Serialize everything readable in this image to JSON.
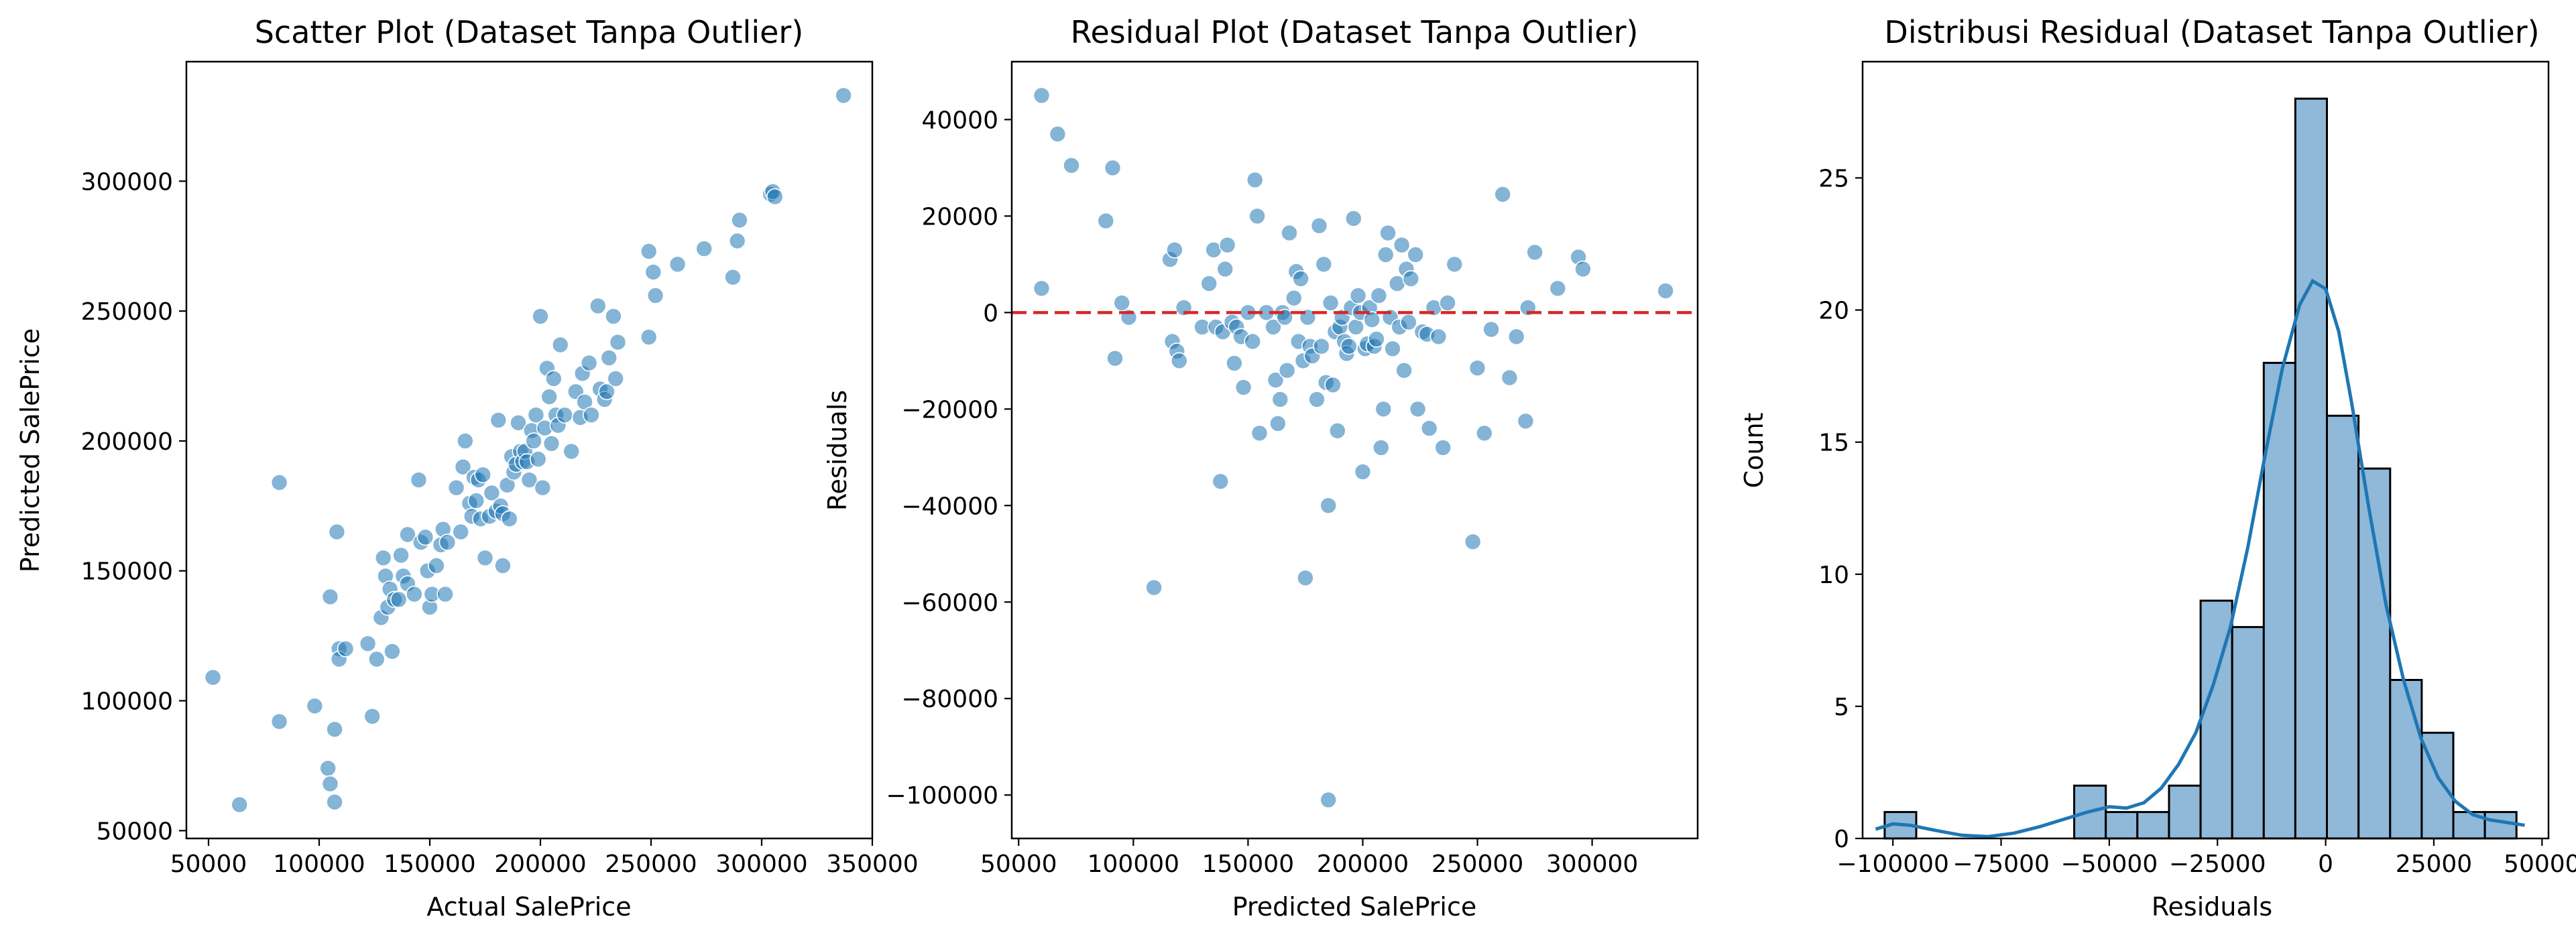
{
  "chart_data": [
    {
      "type": "scatter",
      "title": "Scatter Plot (Dataset Tanpa Outlier)",
      "xlabel": "Actual SalePrice",
      "ylabel": "Predicted SalePrice",
      "xlim": [
        40000,
        350000
      ],
      "ylim": [
        47000,
        346000
      ],
      "xticks": [
        50000,
        100000,
        150000,
        200000,
        250000,
        300000,
        350000
      ],
      "yticks": [
        50000,
        100000,
        150000,
        200000,
        250000,
        300000
      ],
      "point_color": "#1f77b4",
      "points": [
        [
          52000,
          109000
        ],
        [
          64000,
          60000
        ],
        [
          82000,
          184000
        ],
        [
          82000,
          92000
        ],
        [
          98000,
          98000
        ],
        [
          104000,
          74000
        ],
        [
          105000,
          68000
        ],
        [
          105000,
          140000
        ],
        [
          107000,
          61000
        ],
        [
          107000,
          89000
        ],
        [
          108000,
          165000
        ],
        [
          109000,
          120000
        ],
        [
          109000,
          116000
        ],
        [
          112000,
          120000
        ],
        [
          122000,
          122000
        ],
        [
          124000,
          94000
        ],
        [
          126000,
          116000
        ],
        [
          128000,
          132000
        ],
        [
          129000,
          155000
        ],
        [
          130000,
          148000
        ],
        [
          131000,
          136000
        ],
        [
          132000,
          143000
        ],
        [
          133000,
          119000
        ],
        [
          134000,
          139000
        ],
        [
          136000,
          139000
        ],
        [
          137000,
          156000
        ],
        [
          138000,
          148000
        ],
        [
          140000,
          145000
        ],
        [
          140000,
          164000
        ],
        [
          143000,
          141000
        ],
        [
          145000,
          185000
        ],
        [
          146000,
          161000
        ],
        [
          148000,
          163000
        ],
        [
          149000,
          150000
        ],
        [
          150000,
          136000
        ],
        [
          151000,
          141000
        ],
        [
          153000,
          152000
        ],
        [
          155000,
          160000
        ],
        [
          156000,
          166000
        ],
        [
          157000,
          141000
        ],
        [
          158000,
          161000
        ],
        [
          162000,
          182000
        ],
        [
          164000,
          165000
        ],
        [
          165000,
          190000
        ],
        [
          166000,
          200000
        ],
        [
          168000,
          176000
        ],
        [
          169000,
          171000
        ],
        [
          170000,
          186000
        ],
        [
          171000,
          177000
        ],
        [
          172000,
          185000
        ],
        [
          173000,
          170000
        ],
        [
          174000,
          187000
        ],
        [
          175000,
          155000
        ],
        [
          177000,
          171000
        ],
        [
          178000,
          180000
        ],
        [
          180000,
          173000
        ],
        [
          181000,
          208000
        ],
        [
          182000,
          175000
        ],
        [
          183000,
          152000
        ],
        [
          183000,
          172000
        ],
        [
          185000,
          183000
        ],
        [
          186000,
          170000
        ],
        [
          187000,
          194000
        ],
        [
          188000,
          188000
        ],
        [
          189000,
          191000
        ],
        [
          190000,
          207000
        ],
        [
          191000,
          196000
        ],
        [
          192000,
          192000
        ],
        [
          193000,
          196000
        ],
        [
          194000,
          192000
        ],
        [
          195000,
          185000
        ],
        [
          196000,
          204000
        ],
        [
          197000,
          200000
        ],
        [
          198000,
          210000
        ],
        [
          199000,
          193000
        ],
        [
          200000,
          248000
        ],
        [
          201000,
          182000
        ],
        [
          202000,
          205000
        ],
        [
          203000,
          228000
        ],
        [
          204000,
          217000
        ],
        [
          205000,
          199000
        ],
        [
          206000,
          224000
        ],
        [
          207000,
          210000
        ],
        [
          208000,
          206000
        ],
        [
          209000,
          237000
        ],
        [
          211000,
          210000
        ],
        [
          214000,
          196000
        ],
        [
          216000,
          219000
        ],
        [
          218000,
          209000
        ],
        [
          219000,
          226000
        ],
        [
          220000,
          215000
        ],
        [
          222000,
          230000
        ],
        [
          223000,
          210000
        ],
        [
          226000,
          252000
        ],
        [
          227000,
          220000
        ],
        [
          229000,
          216000
        ],
        [
          230000,
          219000
        ],
        [
          231000,
          232000
        ],
        [
          233000,
          248000
        ],
        [
          234000,
          224000
        ],
        [
          235000,
          238000
        ],
        [
          249000,
          273000
        ],
        [
          249000,
          240000
        ],
        [
          251000,
          265000
        ],
        [
          252000,
          256000
        ],
        [
          262000,
          268000
        ],
        [
          274000,
          274000
        ],
        [
          287000,
          263000
        ],
        [
          289000,
          277000
        ],
        [
          290000,
          285000
        ],
        [
          304000,
          295000
        ],
        [
          305000,
          296000
        ],
        [
          306000,
          294000
        ],
        [
          337000,
          333000
        ]
      ]
    },
    {
      "type": "scatter",
      "title": "Residual Plot (Dataset Tanpa Outlier)",
      "xlabel": "Predicted SalePrice",
      "ylabel": "Residuals",
      "xlim": [
        47000,
        346000
      ],
      "ylim": [
        -109000,
        52000
      ],
      "xticks": [
        50000,
        100000,
        150000,
        200000,
        250000,
        300000
      ],
      "yticks": [
        -100000,
        -80000,
        -60000,
        -40000,
        -20000,
        0,
        20000,
        40000
      ],
      "point_color": "#1f77b4",
      "reference_line": {
        "y": 0,
        "color": "#d62728",
        "style": "dashed"
      },
      "points": [
        [
          60000,
          45000
        ],
        [
          60000,
          5000
        ],
        [
          67000,
          37000
        ],
        [
          73000,
          30500
        ],
        [
          88000,
          19000
        ],
        [
          91000,
          30000
        ],
        [
          92000,
          -9500
        ],
        [
          95000,
          2000
        ],
        [
          98000,
          -1000
        ],
        [
          109000,
          -57000
        ],
        [
          116000,
          11000
        ],
        [
          117000,
          -6000
        ],
        [
          118000,
          13000
        ],
        [
          119000,
          -8000
        ],
        [
          120000,
          -10000
        ],
        [
          122000,
          1000
        ],
        [
          130000,
          -3000
        ],
        [
          133000,
          6000
        ],
        [
          135000,
          13000
        ],
        [
          136000,
          -3000
        ],
        [
          138000,
          -35000
        ],
        [
          139000,
          -4000
        ],
        [
          140000,
          9000
        ],
        [
          141000,
          14000
        ],
        [
          143000,
          -2000
        ],
        [
          144000,
          -10500
        ],
        [
          145000,
          -3000
        ],
        [
          147000,
          -5000
        ],
        [
          148000,
          -15500
        ],
        [
          150000,
          0
        ],
        [
          152000,
          -6000
        ],
        [
          153000,
          27500
        ],
        [
          154000,
          20000
        ],
        [
          155000,
          -25000
        ],
        [
          158000,
          0
        ],
        [
          161000,
          -3000
        ],
        [
          162000,
          -14000
        ],
        [
          163000,
          -23000
        ],
        [
          164000,
          -18000
        ],
        [
          165000,
          0
        ],
        [
          166000,
          -1000
        ],
        [
          167000,
          -12000
        ],
        [
          168000,
          16500
        ],
        [
          170000,
          3000
        ],
        [
          171000,
          8500
        ],
        [
          172000,
          -6000
        ],
        [
          173000,
          7000
        ],
        [
          174000,
          -10000
        ],
        [
          175000,
          -55000
        ],
        [
          176000,
          -1000
        ],
        [
          177000,
          -7000
        ],
        [
          178000,
          -9000
        ],
        [
          180000,
          -18000
        ],
        [
          181000,
          18000
        ],
        [
          182000,
          -7000
        ],
        [
          183000,
          10000
        ],
        [
          184000,
          -14500
        ],
        [
          185000,
          -40000
        ],
        [
          185000,
          -101000
        ],
        [
          186000,
          2000
        ],
        [
          187000,
          -15000
        ],
        [
          188000,
          -4000
        ],
        [
          189000,
          -24500
        ],
        [
          190000,
          -3000
        ],
        [
          191000,
          -1000
        ],
        [
          192000,
          -6000
        ],
        [
          193000,
          -8500
        ],
        [
          194000,
          -7000
        ],
        [
          195000,
          1000
        ],
        [
          196000,
          19500
        ],
        [
          197000,
          -3000
        ],
        [
          198000,
          3500
        ],
        [
          199000,
          0
        ],
        [
          200000,
          -33000
        ],
        [
          201000,
          -7500
        ],
        [
          202000,
          -6500
        ],
        [
          203000,
          1000
        ],
        [
          204000,
          -1500
        ],
        [
          205000,
          -7000
        ],
        [
          206000,
          -5500
        ],
        [
          207000,
          3500
        ],
        [
          208000,
          -28000
        ],
        [
          209000,
          -20000
        ],
        [
          210000,
          12000
        ],
        [
          211000,
          16500
        ],
        [
          212000,
          -1000
        ],
        [
          213000,
          -7500
        ],
        [
          215000,
          6000
        ],
        [
          216000,
          -3000
        ],
        [
          217000,
          14000
        ],
        [
          218000,
          -12000
        ],
        [
          219000,
          9000
        ],
        [
          220000,
          -2000
        ],
        [
          221000,
          7000
        ],
        [
          223000,
          12000
        ],
        [
          224000,
          -20000
        ],
        [
          226000,
          -4000
        ],
        [
          228000,
          -4500
        ],
        [
          229000,
          -24000
        ],
        [
          231000,
          1000
        ],
        [
          233000,
          -5000
        ],
        [
          235000,
          -28000
        ],
        [
          237000,
          2000
        ],
        [
          240000,
          10000
        ],
        [
          248000,
          -47500
        ],
        [
          250000,
          -11500
        ],
        [
          253000,
          -25000
        ],
        [
          256000,
          -3500
        ],
        [
          261000,
          24500
        ],
        [
          264000,
          -13500
        ],
        [
          267000,
          -5000
        ],
        [
          271000,
          -22500
        ],
        [
          272000,
          1000
        ],
        [
          275000,
          12500
        ],
        [
          285000,
          5000
        ],
        [
          294000,
          11500
        ],
        [
          296000,
          9000
        ],
        [
          332000,
          4500
        ]
      ]
    },
    {
      "type": "bar",
      "title": "Distribusi Residual (Dataset Tanpa Outlier)",
      "xlabel": "Residuals",
      "ylabel": "Count",
      "xlim": [
        -107000,
        51500
      ],
      "ylim": [
        0,
        29.4
      ],
      "xticks": [
        -100000,
        -75000,
        -50000,
        -25000,
        0,
        25000,
        50000
      ],
      "yticks": [
        0,
        5,
        10,
        15,
        20,
        25
      ],
      "bar_color": "#8fb8d9",
      "kde_color": "#1f77b4",
      "bin_width": 7300,
      "bin_edges": [
        -101900,
        -94600,
        -87300,
        -80000,
        -72700,
        -65400,
        -58100,
        -50800,
        -43500,
        -36200,
        -28900,
        -21600,
        -14300,
        -7000,
        300,
        7600,
        14900,
        22200,
        29500,
        36800,
        44100
      ],
      "counts": [
        1,
        0,
        0,
        0,
        0,
        0,
        2,
        1,
        1,
        2,
        9,
        8,
        18,
        28,
        16,
        14,
        6,
        4,
        1,
        1
      ],
      "kde": [
        [
          -104000,
          0.35
        ],
        [
          -100000,
          0.55
        ],
        [
          -96000,
          0.5
        ],
        [
          -90000,
          0.3
        ],
        [
          -84000,
          0.12
        ],
        [
          -78000,
          0.07
        ],
        [
          -72000,
          0.2
        ],
        [
          -66000,
          0.45
        ],
        [
          -60000,
          0.75
        ],
        [
          -55000,
          1.0
        ],
        [
          -50000,
          1.2
        ],
        [
          -46000,
          1.15
        ],
        [
          -42000,
          1.35
        ],
        [
          -38000,
          1.9
        ],
        [
          -34000,
          2.8
        ],
        [
          -30000,
          4.0
        ],
        [
          -26000,
          5.8
        ],
        [
          -22000,
          8.0
        ],
        [
          -18000,
          11.0
        ],
        [
          -14000,
          14.5
        ],
        [
          -10000,
          17.8
        ],
        [
          -6000,
          20.2
        ],
        [
          -3000,
          21.1
        ],
        [
          0,
          20.8
        ],
        [
          3000,
          19.2
        ],
        [
          6000,
          16.5
        ],
        [
          10000,
          12.5
        ],
        [
          14000,
          8.8
        ],
        [
          18000,
          6.0
        ],
        [
          22000,
          3.8
        ],
        [
          26000,
          2.3
        ],
        [
          30000,
          1.4
        ],
        [
          34000,
          0.9
        ],
        [
          38000,
          0.7
        ],
        [
          42000,
          0.6
        ],
        [
          46000,
          0.5
        ]
      ]
    }
  ]
}
